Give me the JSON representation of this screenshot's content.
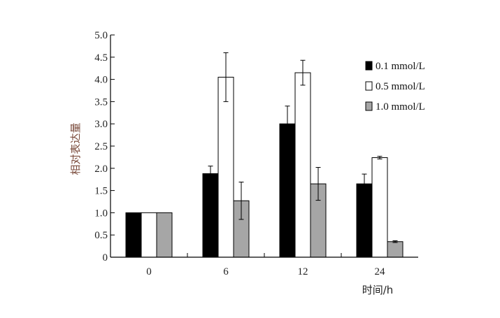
{
  "chart_data": {
    "type": "bar",
    "xlabel": "时间/h",
    "ylabel": "相对表达量",
    "ylim": [
      0,
      5.0
    ],
    "yticks": [
      "0",
      "0.5",
      "1.0",
      "1.5",
      "2.0",
      "2.5",
      "3.0",
      "3.5",
      "4.0",
      "4.5",
      "5.0"
    ],
    "categories": [
      "0",
      "6",
      "12",
      "24"
    ],
    "legend_position": "top-right",
    "series": [
      {
        "name": "0.1 mmol/L",
        "color": "#000000",
        "values": [
          1.0,
          1.88,
          3.0,
          1.65
        ],
        "errors": [
          0.0,
          0.17,
          0.4,
          0.22
        ]
      },
      {
        "name": "0.5 mmol/L",
        "color": "#ffffff",
        "values": [
          1.0,
          4.05,
          4.15,
          2.24
        ],
        "errors": [
          0.0,
          0.55,
          0.28,
          0.03
        ]
      },
      {
        "name": "1.0 mmol/L",
        "color": "#a6a6a6",
        "values": [
          1.0,
          1.27,
          1.65,
          0.35
        ],
        "errors": [
          0.0,
          0.42,
          0.37,
          0.02
        ]
      }
    ]
  }
}
